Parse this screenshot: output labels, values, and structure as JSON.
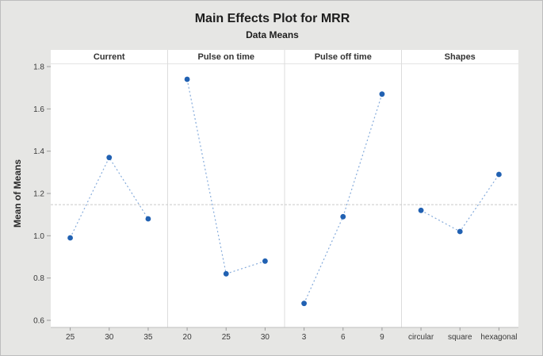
{
  "chart_data": {
    "type": "line",
    "title": "Main Effects Plot for MRR",
    "subtitle": "Data Means",
    "ylabel": "Mean of Means",
    "ylim": [
      0.6,
      1.8
    ],
    "yticks": [
      0.6,
      0.8,
      1.0,
      1.2,
      1.4,
      1.6,
      1.8
    ],
    "grid": "off",
    "legend": "none",
    "reference_mean": 1.147,
    "panels": [
      {
        "label": "Current",
        "categories": [
          "25",
          "30",
          "35"
        ],
        "values": [
          0.99,
          1.37,
          1.08
        ]
      },
      {
        "label": "Pulse on time",
        "categories": [
          "20",
          "25",
          "30"
        ],
        "values": [
          1.74,
          0.82,
          0.88
        ]
      },
      {
        "label": "Pulse off time",
        "categories": [
          "3",
          "6",
          "9"
        ],
        "values": [
          0.68,
          1.09,
          1.67
        ]
      },
      {
        "label": "Shapes",
        "categories": [
          "circular",
          "square",
          "hexagonal"
        ],
        "values": [
          1.12,
          1.02,
          1.29
        ]
      }
    ],
    "colors": {
      "point": "#2161b2",
      "line": "#85abdb",
      "reference_line": "#c9c9c9",
      "plot_bg": "#ffffff",
      "outer_bg": "#e6e6e4",
      "axis": "#bdbdbd",
      "tick": "#9b9b9b",
      "separator": "#dcdcdc",
      "text": "#3a3a3a"
    }
  }
}
